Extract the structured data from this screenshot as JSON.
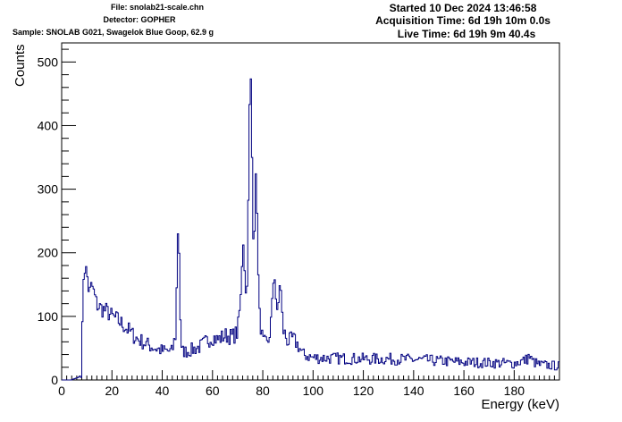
{
  "header": {
    "file": "File: snolab21-scale.chn",
    "detector": "Detector: GOPHER",
    "sample": "Sample: SNOLAB G021, Swagelok Blue Goop, 62.9 g",
    "started": "Started 10 Dec 2024 13:46:58",
    "acquisition": "Acquisition Time: 6d 19h 10m 0.0s",
    "live": "Live Time: 6d 19h 9m 40.4s"
  },
  "colors": {
    "line": "#000080",
    "axis": "#000000",
    "background": "#ffffff"
  },
  "chart_data": {
    "type": "line",
    "style": "step-histogram",
    "xlabel": "Energy (keV)",
    "ylabel": "Counts",
    "xlim": [
      0,
      198
    ],
    "ylim": [
      0,
      530
    ],
    "xticks": [
      0,
      20,
      40,
      60,
      80,
      100,
      120,
      140,
      160,
      180
    ],
    "yticks": [
      0,
      100,
      200,
      300,
      400,
      500
    ],
    "grid": false,
    "bin_width": 0.5,
    "anchors": [
      [
        0,
        0
      ],
      [
        4,
        0
      ],
      [
        5,
        2
      ],
      [
        6,
        3
      ],
      [
        7,
        5
      ],
      [
        8,
        10
      ],
      [
        8.5,
        150
      ],
      [
        9,
        178
      ],
      [
        10,
        170
      ],
      [
        11,
        135
      ],
      [
        12,
        150
      ],
      [
        14,
        118
      ],
      [
        16,
        112
      ],
      [
        18,
        108
      ],
      [
        20,
        100
      ],
      [
        22,
        95
      ],
      [
        25,
        85
      ],
      [
        28,
        72
      ],
      [
        30,
        65
      ],
      [
        33,
        58
      ],
      [
        36,
        52
      ],
      [
        40,
        46
      ],
      [
        44,
        45
      ],
      [
        45.5,
        75
      ],
      [
        46,
        210
      ],
      [
        46.5,
        258
      ],
      [
        47,
        150
      ],
      [
        47.5,
        45
      ],
      [
        50,
        45
      ],
      [
        55,
        52
      ],
      [
        58,
        62
      ],
      [
        60,
        68
      ],
      [
        62,
        63
      ],
      [
        65,
        70
      ],
      [
        68,
        68
      ],
      [
        70,
        75
      ],
      [
        71.5,
        140
      ],
      [
        72,
        230
      ],
      [
        72.5,
        210
      ],
      [
        73,
        150
      ],
      [
        73.5,
        120
      ],
      [
        74,
        200
      ],
      [
        74.5,
        350
      ],
      [
        75,
        505
      ],
      [
        75.5,
        430
      ],
      [
        76,
        270
      ],
      [
        76.5,
        200
      ],
      [
        77,
        290
      ],
      [
        77.5,
        335
      ],
      [
        78,
        210
      ],
      [
        78.5,
        110
      ],
      [
        80,
        60
      ],
      [
        82,
        55
      ],
      [
        83,
        80
      ],
      [
        84,
        130
      ],
      [
        84.5,
        180
      ],
      [
        85,
        150
      ],
      [
        85.5,
        110
      ],
      [
        86,
        90
      ],
      [
        86.5,
        150
      ],
      [
        87,
        155
      ],
      [
        87.5,
        120
      ],
      [
        88,
        80
      ],
      [
        90,
        60
      ],
      [
        92,
        65
      ],
      [
        94,
        55
      ],
      [
        96,
        40
      ],
      [
        100,
        35
      ],
      [
        110,
        34
      ],
      [
        120,
        33
      ],
      [
        130,
        33
      ],
      [
        140,
        32
      ],
      [
        150,
        30
      ],
      [
        160,
        28
      ],
      [
        170,
        27
      ],
      [
        180,
        26
      ],
      [
        185,
        32
      ],
      [
        186,
        38
      ],
      [
        187,
        30
      ],
      [
        190,
        24
      ],
      [
        198,
        22
      ]
    ]
  }
}
